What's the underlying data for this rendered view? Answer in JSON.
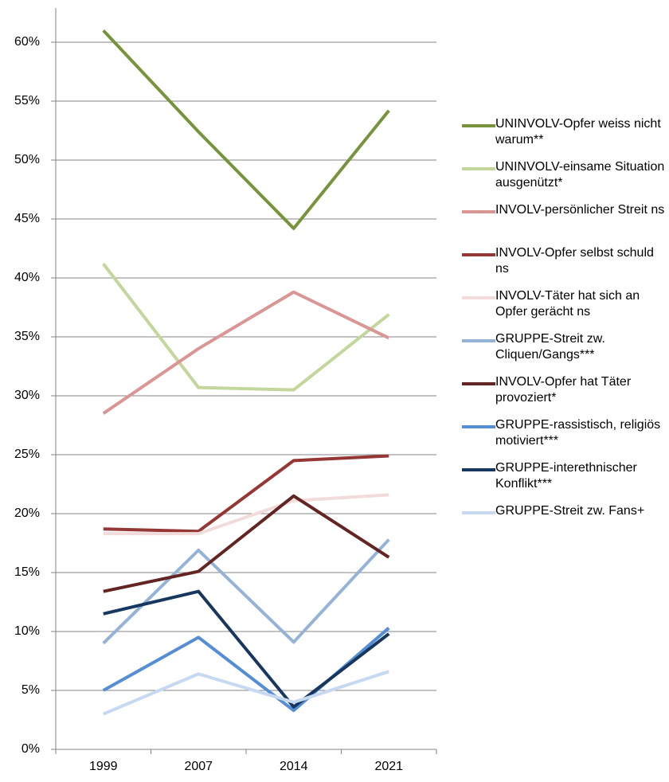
{
  "chart_data": {
    "type": "line",
    "categories": [
      "1999",
      "2007",
      "2014",
      "2021"
    ],
    "ylim": [
      0,
      60
    ],
    "yticks": [
      {
        "value": 0,
        "label": "0%"
      },
      {
        "value": 5,
        "label": "5%"
      },
      {
        "value": 10,
        "label": "10%"
      },
      {
        "value": 15,
        "label": "15%"
      },
      {
        "value": 20,
        "label": "20%"
      },
      {
        "value": 25,
        "label": "25%"
      },
      {
        "value": 30,
        "label": "30%"
      },
      {
        "value": 35,
        "label": "35%"
      },
      {
        "value": 40,
        "label": "40%"
      },
      {
        "value": 45,
        "label": "45%"
      },
      {
        "value": 50,
        "label": "50%"
      },
      {
        "value": 55,
        "label": "55%"
      },
      {
        "value": 60,
        "label": "60%"
      }
    ],
    "grid": true,
    "legend": "right",
    "series": [
      {
        "name": "UNINVOLV-Opfer weiss nicht warum**",
        "color": "#77933c",
        "values": [
          61.0,
          52.4,
          44.2,
          54.2
        ]
      },
      {
        "name": "UNINVOLV-einsame Situation ausgenützt*",
        "color": "#c3d69b",
        "values": [
          41.2,
          30.7,
          30.5,
          36.9
        ]
      },
      {
        "name": "INVOLV-persönlicher Streit ns",
        "color": "#d99694",
        "values": [
          28.5,
          34.0,
          38.8,
          34.9
        ]
      },
      {
        "name": "INVOLV-Opfer selbst schuld ns",
        "color": "#953735",
        "values": [
          18.7,
          18.5,
          24.5,
          24.9
        ]
      },
      {
        "name": "INVOLV-Täter hat sich an Opfer gerächt ns",
        "color": "#f2dcdb",
        "values": [
          18.3,
          18.3,
          21.1,
          21.6
        ]
      },
      {
        "name": "GRUPPE-Streit zw. Cliquen/Gangs***",
        "color": "#95b3d7",
        "values": [
          9.0,
          16.9,
          9.1,
          17.8
        ]
      },
      {
        "name": "INVOLV-Opfer hat Täter provoziert*",
        "color": "#632523",
        "values": [
          13.4,
          15.1,
          21.5,
          16.3
        ]
      },
      {
        "name": "GRUPPE-rassistisch, religiös motiviert***",
        "color": "#558ed5",
        "values": [
          5.0,
          9.5,
          3.3,
          10.3
        ]
      },
      {
        "name": "GRUPPE-interethnischer Konflikt***",
        "color": "#17375e",
        "values": [
          11.5,
          13.4,
          3.6,
          9.8
        ]
      },
      {
        "name": "GRUPPE-Streit zw. Fans+",
        "color": "#c6d9f1",
        "values": [
          3.0,
          6.4,
          4.0,
          6.6
        ]
      }
    ]
  }
}
